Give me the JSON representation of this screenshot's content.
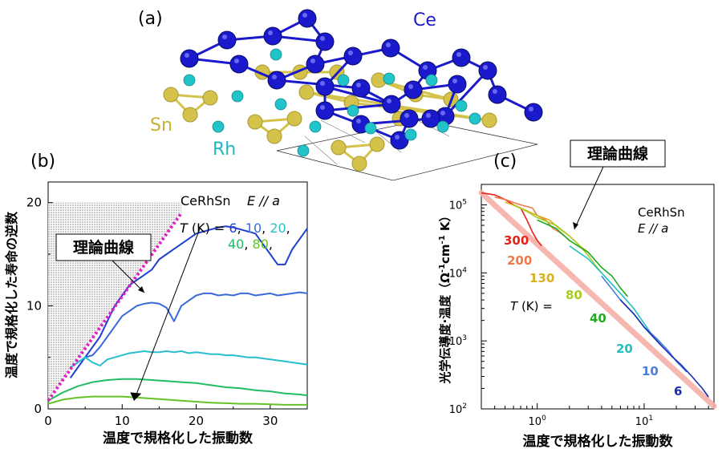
{
  "panel_labels": {
    "a": "(a)",
    "b": "(b)",
    "c": "(c)"
  },
  "crystal": {
    "labels": {
      "ce": "Ce",
      "sn": "Sn",
      "rh": "Rh"
    },
    "colors": {
      "ce": "#1a1acc",
      "sn": "#d4c24a",
      "rh": "#22c4c9"
    }
  },
  "chart_data": [
    {
      "id": "b",
      "type": "line",
      "xlabel": "温度で規格化した振動数",
      "ylabel": "温度で規格化した寿命の逆数",
      "xlim": [
        0,
        35
      ],
      "ylim": [
        0,
        22
      ],
      "xticks": [
        0,
        10,
        20,
        30
      ],
      "yticks": [
        0,
        10,
        20
      ],
      "tick_labels_x": [
        "0",
        "10",
        "20",
        "30"
      ],
      "tick_labels_y": [
        "0",
        "10",
        "20"
      ],
      "annotation_material": "CeRhSn",
      "annotation_pol": "E // a",
      "legend_text": {
        "t": "T",
        "unit": " (K) = ",
        "v6": "6",
        "v10": "10",
        "v20": "20",
        "v40": "40",
        "v80": "80",
        "comma": ","
      },
      "theory_label": "理論曲線",
      "theory_line": {
        "x": [
          0,
          18
        ],
        "y": [
          0.8,
          19
        ],
        "color": "#e020c0"
      },
      "series": [
        {
          "name": "6",
          "color": "#1f3fd0",
          "x": [
            3,
            4,
            5,
            6,
            7,
            8,
            9,
            10,
            11,
            12,
            13,
            14,
            15,
            16,
            17,
            18,
            19,
            20,
            21,
            22,
            23,
            24,
            25,
            26,
            27,
            28,
            29,
            30,
            31,
            32,
            33,
            34,
            35
          ],
          "y": [
            3,
            4,
            5,
            6,
            7,
            8.5,
            10,
            11,
            12,
            12.5,
            13,
            13.5,
            14.5,
            15,
            15.5,
            16,
            16.5,
            17,
            17.2,
            17.4,
            17.6,
            17.7,
            17.6,
            17.4,
            17.2,
            17,
            16,
            15,
            14,
            14,
            15.5,
            16.5,
            17.5
          ]
        },
        {
          "name": "10",
          "color": "#3a6ad8",
          "x": [
            3,
            4,
            5,
            6,
            7,
            8,
            9,
            10,
            11,
            12,
            13,
            14,
            15,
            16,
            17,
            18,
            19,
            20,
            21,
            22,
            23,
            24,
            25,
            26,
            27,
            28,
            29,
            30,
            31,
            32,
            33,
            34,
            35
          ],
          "y": [
            4,
            4.5,
            5,
            5.2,
            6,
            7,
            8,
            9,
            9.5,
            10,
            10.2,
            10.3,
            10.2,
            9.8,
            8.5,
            10,
            10.5,
            11,
            11.2,
            11.2,
            11,
            11.1,
            11,
            11.2,
            11.2,
            11,
            11.1,
            11.2,
            11,
            11.1,
            11.2,
            11.3,
            11.2
          ]
        },
        {
          "name": "20",
          "color": "#2abfcf",
          "x": [
            3,
            4,
            5,
            6,
            7,
            8,
            9,
            10,
            11,
            12,
            13,
            14,
            15,
            16,
            17,
            18,
            19,
            20,
            21,
            22,
            23,
            24,
            25,
            26,
            27,
            28,
            29,
            30,
            31,
            32,
            33,
            34,
            35
          ],
          "y": [
            4,
            4.5,
            5,
            4.5,
            4.2,
            4.8,
            5,
            5.2,
            5.4,
            5.5,
            5.6,
            5.5,
            5.5,
            5.6,
            5.5,
            5.6,
            5.4,
            5.5,
            5.4,
            5.3,
            5.3,
            5.2,
            5.2,
            5.1,
            5,
            5,
            4.9,
            4.8,
            4.7,
            4.6,
            4.5,
            4.4,
            4.3
          ]
        },
        {
          "name": "40",
          "color": "#22bb66",
          "x": [
            0,
            2,
            4,
            6,
            8,
            10,
            12,
            14,
            16,
            18,
            20,
            22,
            24,
            26,
            28,
            30,
            32,
            34,
            35
          ],
          "y": [
            0.8,
            1.6,
            2.2,
            2.6,
            2.8,
            2.9,
            2.9,
            2.8,
            2.7,
            2.6,
            2.5,
            2.3,
            2.1,
            2,
            1.8,
            1.7,
            1.5,
            1.4,
            1.3
          ]
        },
        {
          "name": "80",
          "color": "#66c22a",
          "x": [
            0,
            2,
            4,
            6,
            8,
            10,
            12,
            14,
            16,
            18,
            20,
            22,
            24,
            26,
            28,
            30,
            32,
            34,
            35
          ],
          "y": [
            0.5,
            0.9,
            1.1,
            1.2,
            1.2,
            1.2,
            1.1,
            1,
            0.9,
            0.8,
            0.7,
            0.6,
            0.55,
            0.5,
            0.5,
            0.45,
            0.4,
            0.4,
            0.4
          ]
        }
      ]
    },
    {
      "id": "c",
      "type": "line",
      "xlabel": "温度で規格化した振動数",
      "ylabel": "光学伝導度·温度（Ω-1cm-1 K）",
      "ylabel_parts": {
        "a": "光学伝導度·温度（Ω",
        "b": "-1",
        "c": "cm",
        "d": "-1",
        "e": " K）"
      },
      "xscale": "log",
      "yscale": "log",
      "xlim": [
        0.3,
        45
      ],
      "ylim": [
        100,
        200000
      ],
      "xticks": [
        1,
        10
      ],
      "tick_labels_x": {
        "b1": "10",
        "e1": "0",
        "b2": "10",
        "e2": "1"
      },
      "tick_labels_y": {
        "b": "10",
        "e2": "2",
        "e3": "3",
        "e4": "4",
        "e5": "5"
      },
      "annotation_material": "CeRhSn",
      "annotation_pol": "E // a",
      "theory_label": "理論曲線",
      "temperature_prefix": "T (K) =",
      "series": [
        {
          "name": "300",
          "color": "#e8201a",
          "x": [
            0.3,
            0.4,
            0.5,
            0.6,
            0.7,
            0.8,
            0.9,
            1.0,
            1.1
          ],
          "y": [
            150000,
            140000,
            120000,
            100000,
            90000,
            60000,
            40000,
            30000,
            25000
          ]
        },
        {
          "name": "200",
          "color": "#f07a4a",
          "x": [
            0.4,
            0.5,
            0.7,
            0.9,
            1.0,
            1.2,
            1.4,
            1.6,
            1.8,
            2.0
          ],
          "y": [
            130000,
            120000,
            100000,
            90000,
            70000,
            60000,
            45000,
            40000,
            35000,
            30000
          ]
        },
        {
          "name": "130",
          "color": "#d8b020",
          "x": [
            0.5,
            0.7,
            1.0,
            1.3,
            1.6,
            2.0,
            2.5,
            3.0
          ],
          "y": [
            110000,
            90000,
            70000,
            60000,
            45000,
            35000,
            25000,
            20000
          ]
        },
        {
          "name": "80",
          "color": "#a8cc22",
          "x": [
            0.6,
            0.8,
            1.0,
            1.5,
            2.0,
            2.5,
            3.0,
            3.5,
            4.0
          ],
          "y": [
            100000,
            80000,
            65000,
            50000,
            35000,
            25000,
            18000,
            13000,
            10000
          ]
        },
        {
          "name": "40",
          "color": "#22aa22",
          "x": [
            1.0,
            1.5,
            2.0,
            3.0,
            4.0,
            5.0,
            6.0,
            7.0
          ],
          "y": [
            60000,
            45000,
            30000,
            20000,
            12000,
            9000,
            6000,
            4500
          ]
        },
        {
          "name": "20",
          "color": "#22c0c0",
          "x": [
            2.0,
            3.0,
            4.0,
            6.0,
            8.0,
            10.0,
            12.0,
            15.0
          ],
          "y": [
            25000,
            16000,
            10000,
            5000,
            3000,
            1800,
            1200,
            800
          ]
        },
        {
          "name": "10",
          "color": "#4a7de0",
          "x": [
            4.0,
            6.0,
            8.0,
            10.0,
            13.0,
            17.0,
            20.0,
            25.0
          ],
          "y": [
            9000,
            4000,
            2500,
            1600,
            1100,
            700,
            500,
            350
          ]
        },
        {
          "name": "6",
          "color": "#1a2cb0",
          "x": [
            6.0,
            8.0,
            10.0,
            14.0,
            18.0,
            22.0,
            28.0,
            35.0,
            40.0
          ],
          "y": [
            4000,
            2500,
            1600,
            900,
            600,
            450,
            300,
            200,
            150
          ]
        }
      ],
      "theory_line": {
        "x": [
          0.3,
          45
        ],
        "y": [
          150000,
          110
        ],
        "color": "#f4b0a8"
      }
    }
  ]
}
